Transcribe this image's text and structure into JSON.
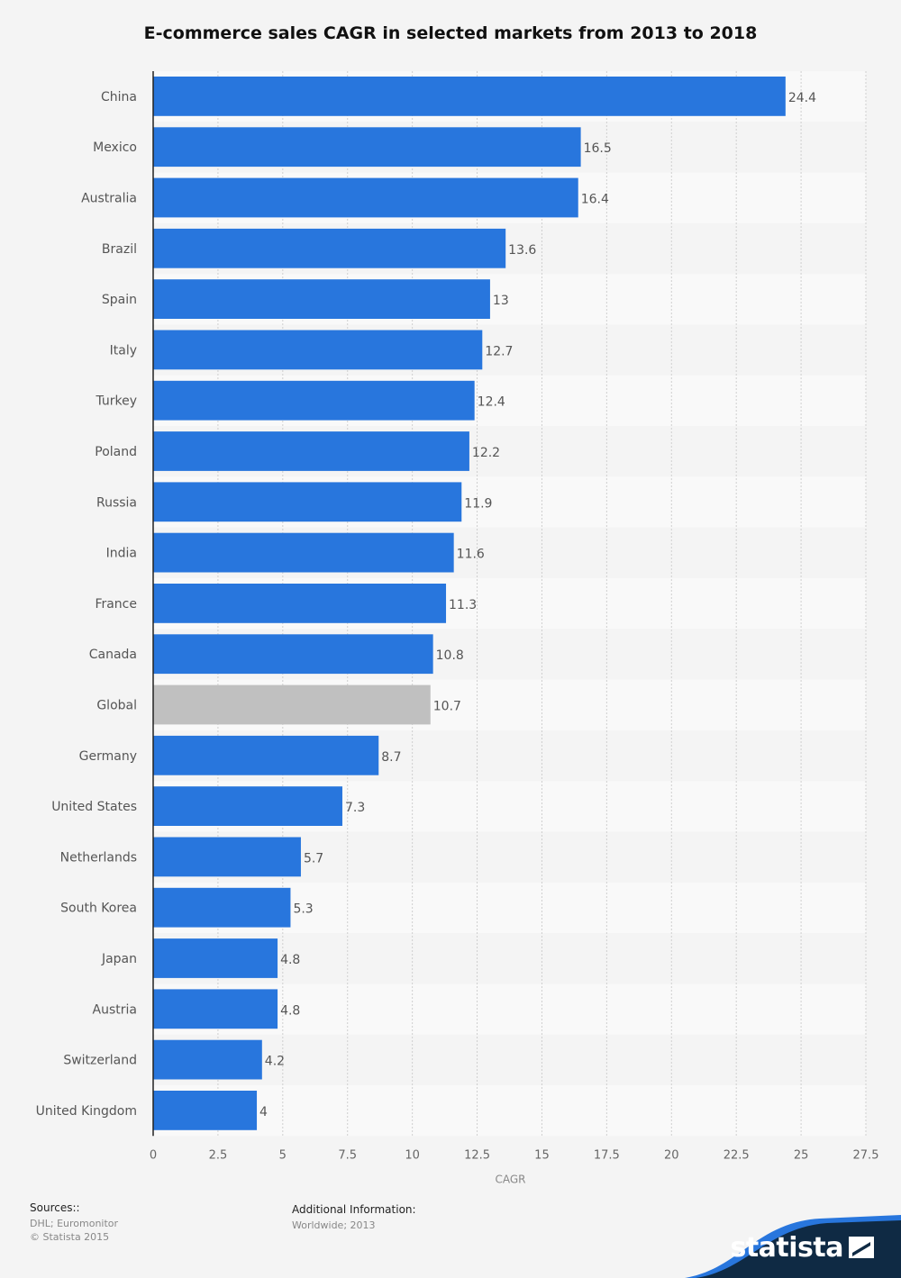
{
  "chart_data": {
    "type": "bar",
    "orientation": "horizontal",
    "title": "E-commerce sales CAGR in selected markets from 2013 to 2018",
    "xlabel": "CAGR",
    "ylabel": "",
    "xlim": [
      0,
      27.5
    ],
    "xticks": [
      "0",
      "2.5",
      "5",
      "7.5",
      "10",
      "12.5",
      "15",
      "17.5",
      "20",
      "22.5",
      "25",
      "27.5"
    ],
    "grid": true,
    "categories": [
      "China",
      "Mexico",
      "Australia",
      "Brazil",
      "Spain",
      "Italy",
      "Turkey",
      "Poland",
      "Russia",
      "India",
      "France",
      "Canada",
      "Global",
      "Germany",
      "United States",
      "Netherlands",
      "South Korea",
      "Japan",
      "Austria",
      "Switzerland",
      "United Kingdom"
    ],
    "values": [
      24.4,
      16.5,
      16.4,
      13.6,
      13,
      12.7,
      12.4,
      12.2,
      11.9,
      11.6,
      11.3,
      10.8,
      10.7,
      8.7,
      7.3,
      5.7,
      5.3,
      4.8,
      4.8,
      4.2,
      4
    ],
    "value_labels": [
      "24.4",
      "16.5",
      "16.4",
      "13.6",
      "13",
      "12.7",
      "12.4",
      "12.2",
      "11.9",
      "11.6",
      "11.3",
      "10.8",
      "10.7",
      "8.7",
      "7.3",
      "5.7",
      "5.3",
      "4.8",
      "4.8",
      "4.2",
      "4"
    ],
    "colors": {
      "bar": "#2876dd",
      "highlight": "#c0c0c0",
      "highlight_category": "Global",
      "band_light": "#f9f9f9",
      "band_dark": "#f4f4f4",
      "label": "#555555"
    }
  },
  "footer": {
    "sources_label": "Sources::",
    "sources": [
      "DHL; Euromonitor",
      "© Statista 2015"
    ],
    "additional_label": "Additional Information:",
    "additional": [
      "Worldwide; 2013"
    ]
  },
  "brand": {
    "name": "statista",
    "icon": "statista-logo-icon",
    "colors": {
      "dark": "#0f2a44",
      "accent": "#2876dd"
    }
  }
}
